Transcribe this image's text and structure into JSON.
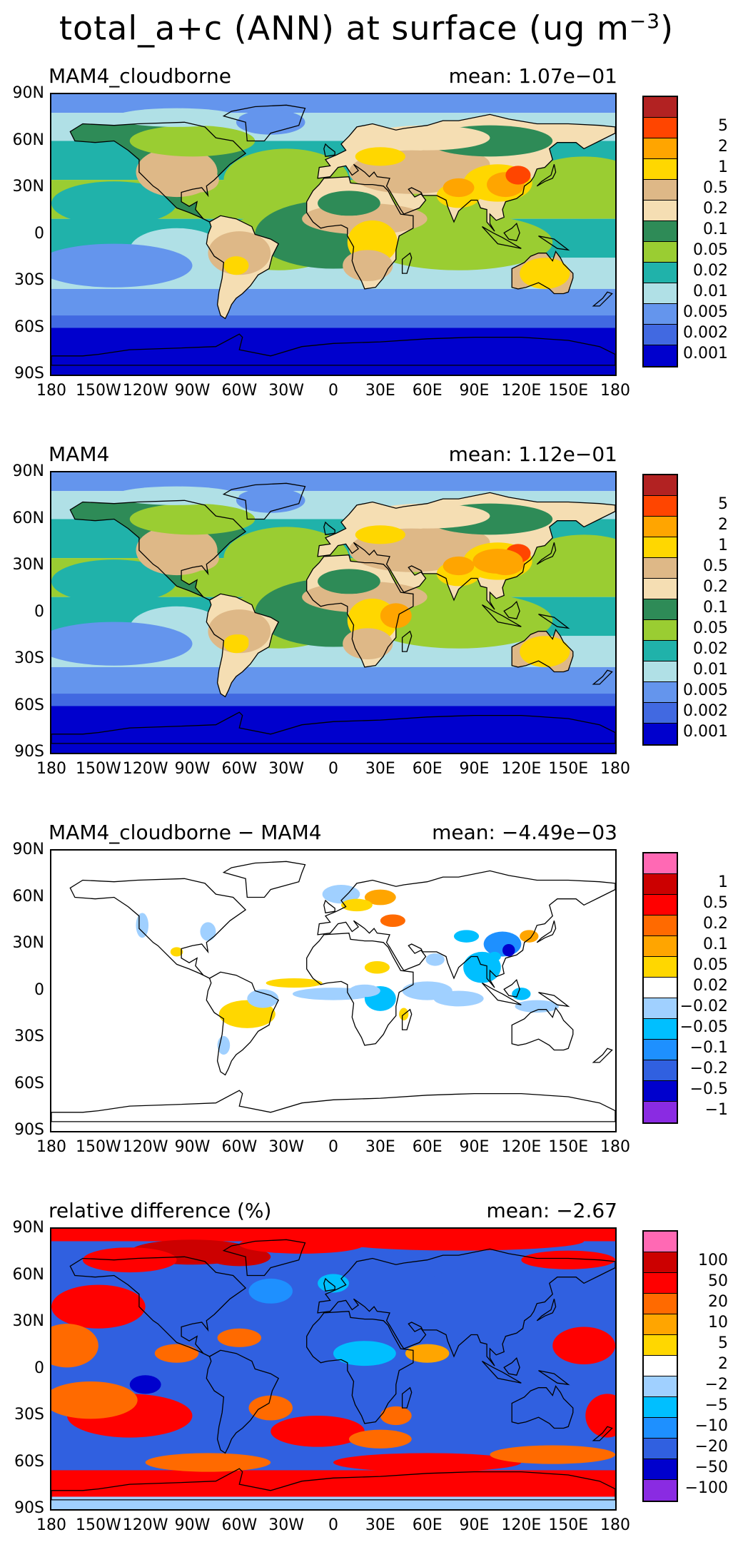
{
  "figure": {
    "title_prefix": "total_a+c (ANN) at surface (ug m",
    "title_exp": "−3",
    "title_suffix": ")"
  },
  "axes": {
    "y_ticks": [
      "90N",
      "60N",
      "30N",
      "0",
      "30S",
      "60S",
      "90S"
    ],
    "x_ticks": [
      "180",
      "150W",
      "120W",
      "90W",
      "60W",
      "30W",
      "0",
      "30E",
      "60E",
      "90E",
      "120E",
      "150E",
      "180"
    ]
  },
  "panels": [
    {
      "title": "MAM4_cloudborne",
      "mean": "mean: 1.07e−01",
      "kind": "abs",
      "colorbar": {
        "colors": [
          "#b22222",
          "#ff4500",
          "#ffa500",
          "#ffd700",
          "#deb887",
          "#f5deb3",
          "#2e8b57",
          "#9acd32",
          "#20b2aa",
          "#b0e0e6",
          "#6495ed",
          "#4169e1",
          "#0000cd"
        ],
        "labels": [
          "5",
          "2",
          "1",
          "0.5",
          "0.2",
          "0.1",
          "0.05",
          "0.02",
          "0.01",
          "0.005",
          "0.002",
          "0.001"
        ]
      }
    },
    {
      "title": "MAM4",
      "mean": "mean: 1.12e−01",
      "kind": "abs",
      "colorbar": {
        "colors": [
          "#b22222",
          "#ff4500",
          "#ffa500",
          "#ffd700",
          "#deb887",
          "#f5deb3",
          "#2e8b57",
          "#9acd32",
          "#20b2aa",
          "#b0e0e6",
          "#6495ed",
          "#4169e1",
          "#0000cd"
        ],
        "labels": [
          "5",
          "2",
          "1",
          "0.5",
          "0.2",
          "0.1",
          "0.05",
          "0.02",
          "0.01",
          "0.005",
          "0.002",
          "0.001"
        ]
      }
    },
    {
      "title": "MAM4_cloudborne − MAM4",
      "mean": "mean: −4.49e−03",
      "kind": "diff",
      "colorbar": {
        "colors": [
          "#ff69b4",
          "#cc0000",
          "#ff0000",
          "#ff6a00",
          "#ffa500",
          "#ffd700",
          "#ffffff",
          "#a0d0ff",
          "#00bfff",
          "#1e90ff",
          "#3060e0",
          "#0000cd",
          "#8a2be2"
        ],
        "labels": [
          "1",
          "0.5",
          "0.2",
          "0.1",
          "0.05",
          "0.02",
          "−0.02",
          "−0.05",
          "−0.1",
          "−0.2",
          "−0.5",
          "−1"
        ]
      }
    },
    {
      "title": "relative difference (%)",
      "mean": "mean: −2.67",
      "kind": "rel",
      "colorbar": {
        "colors": [
          "#ff69b4",
          "#cc0000",
          "#ff0000",
          "#ff6a00",
          "#ffa500",
          "#ffd700",
          "#ffffff",
          "#a0d0ff",
          "#00bfff",
          "#1e90ff",
          "#3060e0",
          "#0000cd",
          "#8a2be2"
        ],
        "labels": [
          "100",
          "50",
          "20",
          "10",
          "5",
          "2",
          "−2",
          "−5",
          "−10",
          "−20",
          "−50",
          "−100"
        ]
      }
    }
  ]
}
